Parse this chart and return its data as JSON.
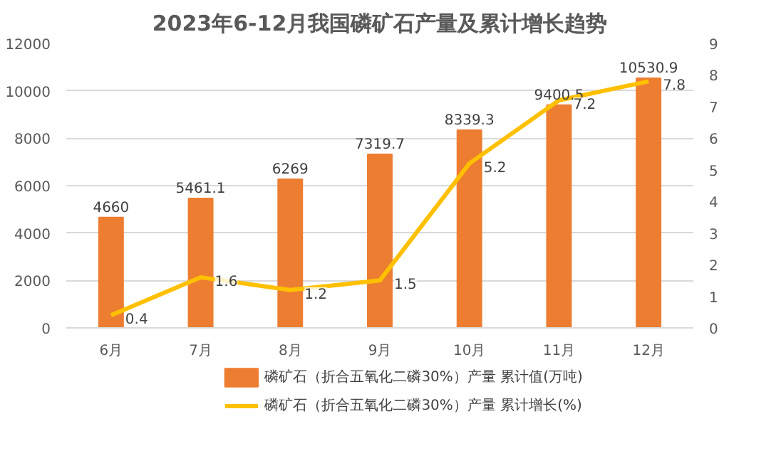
{
  "chart_data": {
    "type": "bar",
    "title": "2023年6-12月我国磷矿石产量及累计增长趋势",
    "categories": [
      "6月",
      "7月",
      "8月",
      "9月",
      "10月",
      "11月",
      "12月"
    ],
    "series": [
      {
        "name": "磷矿石（折合五氧化二磷30%）产量 累计值(万吨)",
        "color": "#ed7d31",
        "values": [
          4660,
          5461.1,
          6269,
          7319.7,
          8339.3,
          9400.5,
          10530.9
        ]
      },
      {
        "name": "磷矿石（折合五氧化二磷30%）产量 累计增长(%)",
        "type": "line",
        "axis": "y2",
        "color": "#ffc000",
        "values": [
          0.4,
          1.6,
          1.2,
          1.5,
          5.2,
          7.2,
          7.8
        ]
      }
    ],
    "ylim": [
      0,
      12000
    ],
    "yticks": [
      0,
      2000,
      4000,
      6000,
      8000,
      10000,
      12000
    ],
    "y2lim": [
      0,
      9
    ],
    "y2ticks": [
      0,
      1,
      2,
      3,
      4,
      5,
      6,
      7,
      8,
      9
    ],
    "grid": "y",
    "legend": "bottom",
    "data_labels": true,
    "marker": "none",
    "line_style": "solid"
  }
}
